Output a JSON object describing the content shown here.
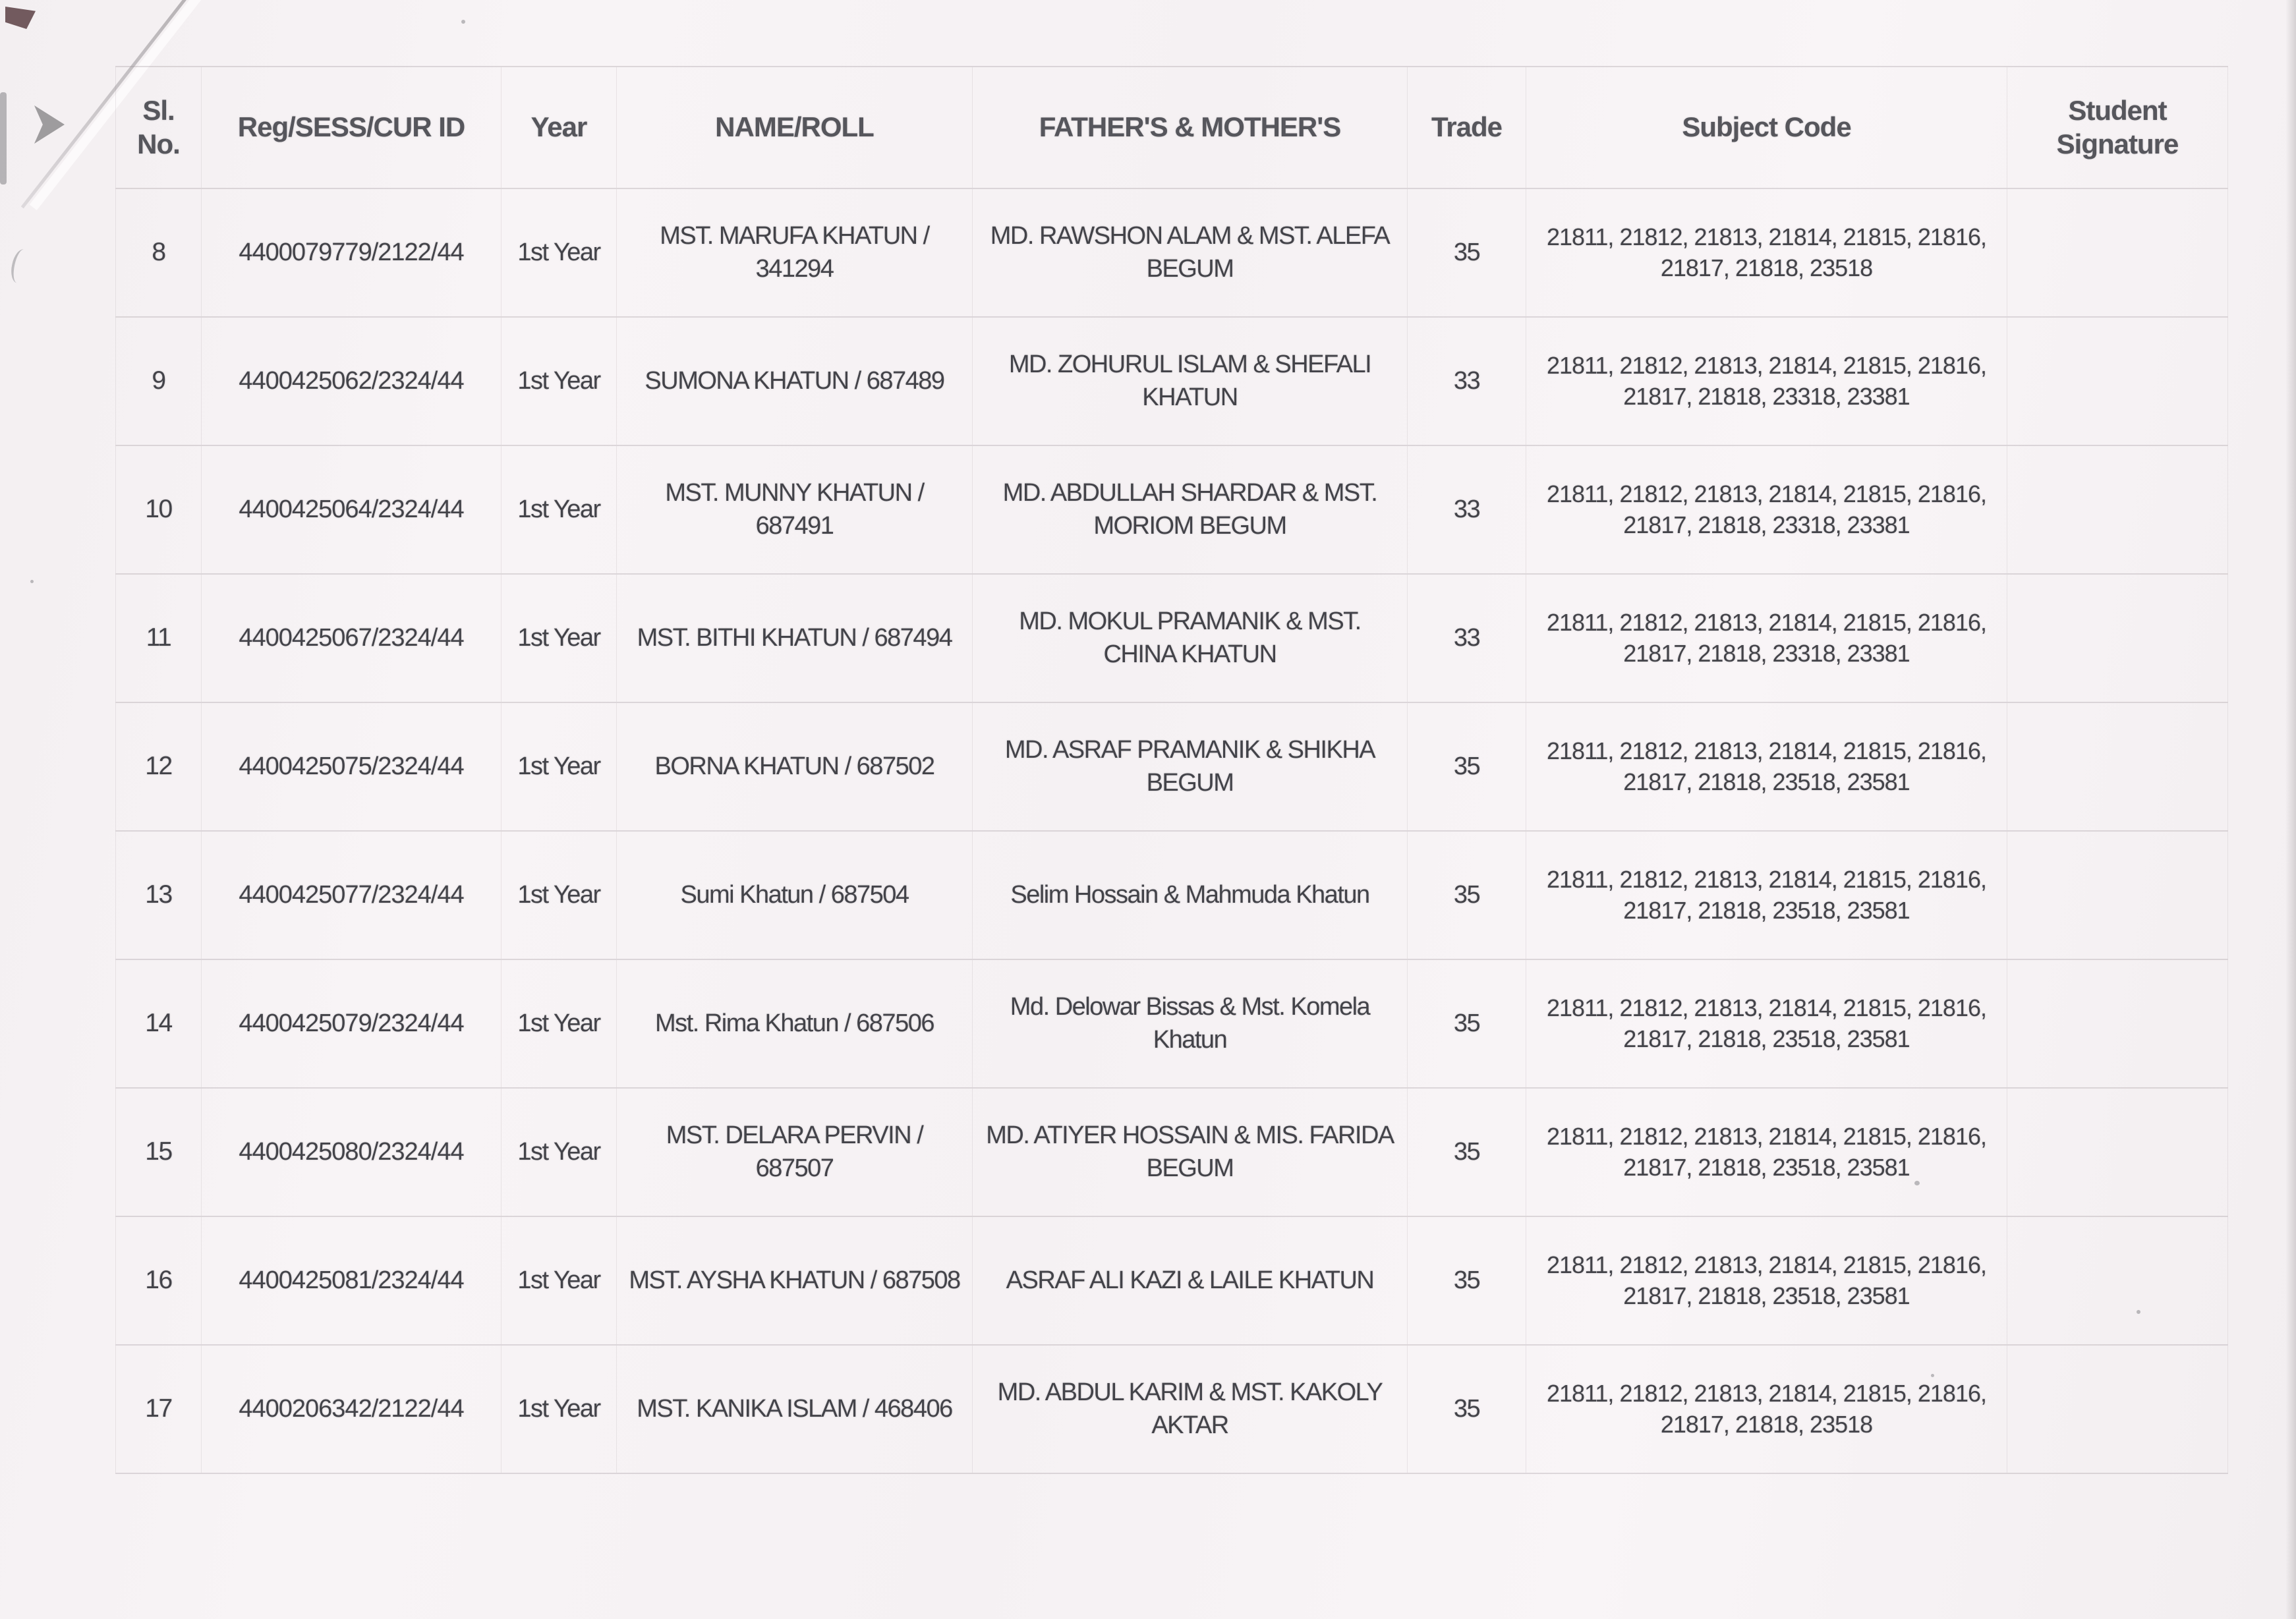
{
  "table": {
    "columns": [
      "Sl. No.",
      "Reg/SESS/CUR ID",
      "Year",
      "NAME/ROLL",
      "FATHER'S & MOTHER'S",
      "Trade",
      "Subject Code",
      "Student Signature"
    ],
    "rows": [
      {
        "sl": "8",
        "reg": "4400079779/2122/44",
        "year": "1st Year",
        "name": "MST. MARUFA KHATUN / 341294",
        "parents": "MD. RAWSHON ALAM & MST. ALEFA BEGUM",
        "trade": "35",
        "subjects": "21811, 21812, 21813, 21814, 21815, 21816, 21817, 21818, 23518",
        "signature": ""
      },
      {
        "sl": "9",
        "reg": "4400425062/2324/44",
        "year": "1st Year",
        "name": "SUMONA KHATUN / 687489",
        "parents": "MD. ZOHURUL ISLAM & SHEFALI KHATUN",
        "trade": "33",
        "subjects": "21811, 21812, 21813, 21814, 21815, 21816, 21817, 21818, 23318, 23381",
        "signature": ""
      },
      {
        "sl": "10",
        "reg": "4400425064/2324/44",
        "year": "1st Year",
        "name": "MST. MUNNY KHATUN / 687491",
        "parents": "MD. ABDULLAH SHARDAR & MST. MORIOM BEGUM",
        "trade": "33",
        "subjects": "21811, 21812, 21813, 21814, 21815, 21816, 21817, 21818, 23318, 23381",
        "signature": ""
      },
      {
        "sl": "11",
        "reg": "4400425067/2324/44",
        "year": "1st Year",
        "name": "MST. BITHI KHATUN / 687494",
        "parents": "MD. MOKUL PRAMANIK & MST. CHINA KHATUN",
        "trade": "33",
        "subjects": "21811, 21812, 21813, 21814, 21815, 21816, 21817, 21818, 23318, 23381",
        "signature": ""
      },
      {
        "sl": "12",
        "reg": "4400425075/2324/44",
        "year": "1st Year",
        "name": "BORNA KHATUN / 687502",
        "parents": "MD. ASRAF PRAMANIK & SHIKHA BEGUM",
        "trade": "35",
        "subjects": "21811, 21812, 21813, 21814, 21815, 21816, 21817, 21818, 23518, 23581",
        "signature": ""
      },
      {
        "sl": "13",
        "reg": "4400425077/2324/44",
        "year": "1st Year",
        "name": "Sumi Khatun / 687504",
        "parents": "Selim Hossain & Mahmuda Khatun",
        "trade": "35",
        "subjects": "21811, 21812, 21813, 21814, 21815, 21816, 21817, 21818, 23518, 23581",
        "signature": ""
      },
      {
        "sl": "14",
        "reg": "4400425079/2324/44",
        "year": "1st Year",
        "name": "Mst. Rima Khatun / 687506",
        "parents": "Md. Delowar Bissas & Mst. Komela Khatun",
        "trade": "35",
        "subjects": "21811, 21812, 21813, 21814, 21815, 21816, 21817, 21818, 23518, 23581",
        "signature": ""
      },
      {
        "sl": "15",
        "reg": "4400425080/2324/44",
        "year": "1st Year",
        "name": "MST. DELARA PERVIN / 687507",
        "parents": "MD. ATIYER HOSSAIN & MIS. FARIDA BEGUM",
        "trade": "35",
        "subjects": "21811, 21812, 21813, 21814, 21815, 21816, 21817, 21818, 23518, 23581",
        "signature": ""
      },
      {
        "sl": "16",
        "reg": "4400425081/2324/44",
        "year": "1st Year",
        "name": "MST. AYSHA KHATUN / 687508",
        "parents": "ASRAF ALI KAZI & LAILE KHATUN",
        "trade": "35",
        "subjects": "21811, 21812, 21813, 21814, 21815, 21816, 21817, 21818, 23518, 23581",
        "signature": ""
      },
      {
        "sl": "17",
        "reg": "4400206342/2122/44",
        "year": "1st Year",
        "name": "MST. KANIKA ISLAM / 468406",
        "parents": "MD. ABDUL KARIM & MST. KAKOLY AKTAR",
        "trade": "35",
        "subjects": "21811, 21812, 21813, 21814, 21815, 21816, 21817, 21818, 23518",
        "signature": ""
      }
    ]
  }
}
